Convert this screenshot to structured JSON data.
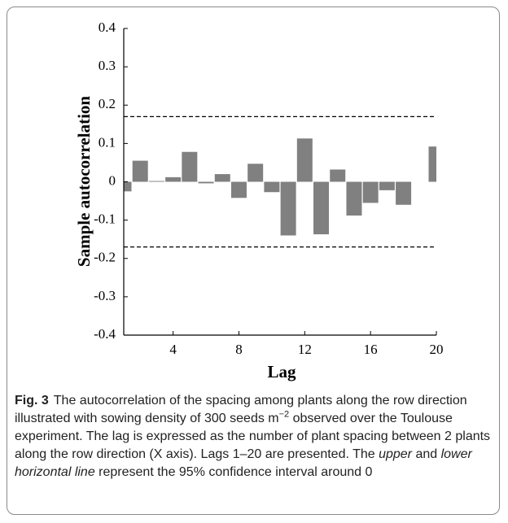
{
  "chart_data": {
    "type": "bar",
    "x": [
      1,
      2,
      3,
      4,
      5,
      6,
      7,
      8,
      9,
      10,
      11,
      12,
      13,
      14,
      15,
      16,
      17,
      18,
      19,
      20
    ],
    "values": [
      -0.025,
      0.055,
      0.002,
      0.012,
      0.078,
      -0.004,
      0.02,
      -0.042,
      0.047,
      -0.027,
      -0.14,
      0.113,
      -0.137,
      0.032,
      -0.088,
      -0.055,
      -0.022,
      -0.06,
      0,
      0.092
    ],
    "color": "#808080",
    "xlim": [
      1,
      20
    ],
    "xticks": [
      4,
      8,
      12,
      16,
      20
    ],
    "ylim": [
      -0.4,
      0.4
    ],
    "yticks": [
      -0.4,
      -0.3,
      -0.2,
      -0.1,
      0,
      0.1,
      0.2,
      0.3,
      0.4
    ],
    "xlabel": "Lag",
    "ylabel": "Sample autocorrelation",
    "hlines": [
      0.17,
      -0.17
    ]
  },
  "caption": {
    "label": "Fig. 3",
    "text": [
      "The autocorrelation of the spacing among plants along the row direction illustrated with sowing density of 300 seeds m",
      "−2",
      " observed over the Toulouse experiment. The lag is expressed as the number of plant spacing between 2 plants along the row direction (X axis). Lags 1–20 are presented. The ",
      "upper",
      " and ",
      "lower horizontal line",
      " represent the 95% confidence interval around 0"
    ]
  }
}
